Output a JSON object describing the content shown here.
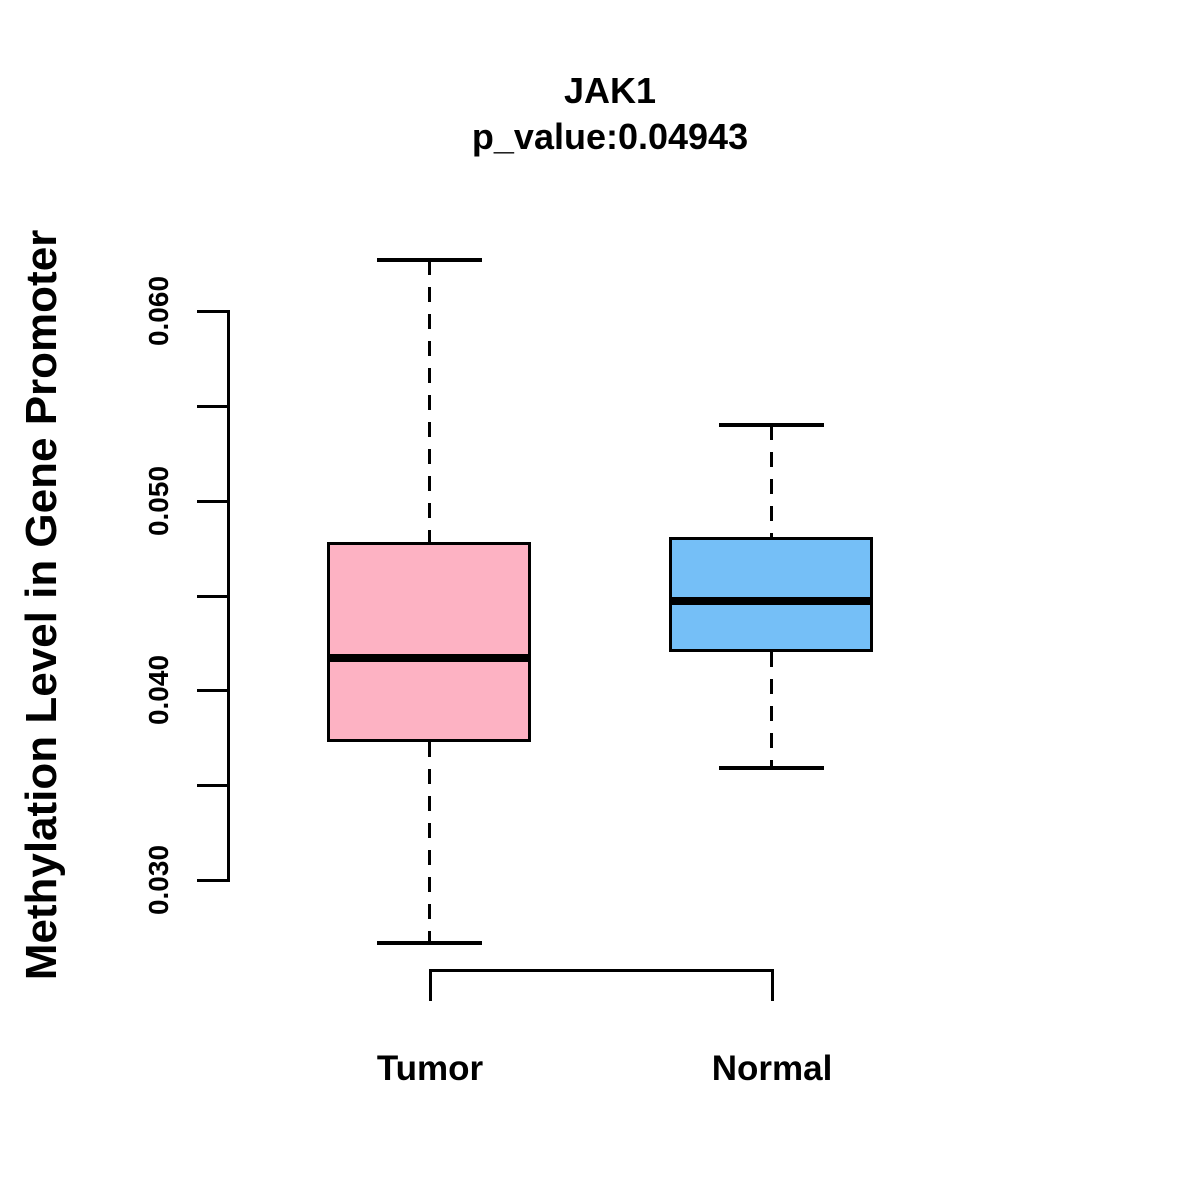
{
  "chart_data": {
    "type": "boxplot",
    "title": "JAK1",
    "subtitle": "p_value:0.04943",
    "ylabel": "Methylation Level in Gene Promoter",
    "xlabel": "",
    "categories": [
      "Tumor",
      "Normal"
    ],
    "ylim": [
      0.03,
      0.06
    ],
    "y_major_ticks": [
      0.03,
      0.04,
      0.05,
      0.06
    ],
    "y_major_tick_labels": [
      "0.030",
      "0.040",
      "0.050",
      "0.060"
    ],
    "y_minor_ticks": [
      0.035,
      0.045,
      0.055
    ],
    "grid": "off",
    "legend": "none",
    "background_color": "#FFFFFF",
    "stroke_color": "#000000",
    "series": [
      {
        "name": "Tumor",
        "fill_color": "#FDB2C3",
        "whisker_low": 0.0267,
        "q1": 0.0373,
        "median": 0.0417,
        "q3": 0.0478,
        "whisker_high": 0.0627,
        "outliers": []
      },
      {
        "name": "Normal",
        "fill_color": "#75BFF7",
        "whisker_low": 0.0359,
        "q1": 0.042,
        "median": 0.0447,
        "q3": 0.0481,
        "whisker_high": 0.054,
        "outliers": []
      }
    ]
  }
}
